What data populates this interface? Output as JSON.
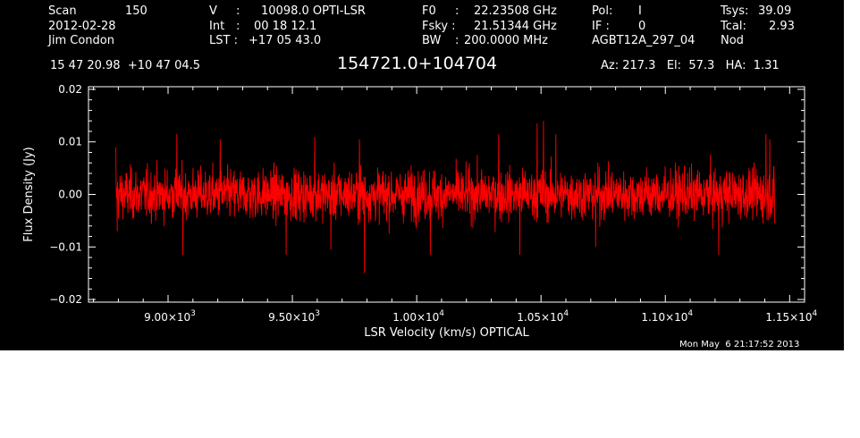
{
  "header": {
    "scan_label": "Scan",
    "scan_number": "150",
    "date": "2012-02-28",
    "observer": "Jim Condon",
    "v_label": "V",
    "v_sep": ":",
    "v_value": "10098.0 OPTI-LSR",
    "int_label": "Int",
    "int_sep": ":",
    "int_value": "00 18 12.1",
    "lst_label": "LST :",
    "lst_value": "+17 05 43.0",
    "f0_label": "F0",
    "f0_sep": ":",
    "f0_value": "22.23508 GHz",
    "fsky_label": "Fsky :",
    "fsky_value": "21.51344 GHz",
    "bw_label": "BW",
    "bw_sep": ":",
    "bw_value": "200.0000 MHz",
    "pol_label": "Pol:",
    "pol_value": "I",
    "if_label": "IF :",
    "if_value": "0",
    "project": "AGBT12A_297_04",
    "tsys_label": "Tsys:",
    "tsys_value": "39.09",
    "tcal_label": "Tcal:",
    "tcal_value": "2.93",
    "proc": "Nod",
    "coords": "15 47 20.98  +10 47 04.5",
    "source_name": "154721.0+104704",
    "az_el_ha": "Az: 217.3   El:  57.3   HA:  1.31",
    "timestamp": "Mon May  6 21:17:52 2013"
  },
  "chart_data": {
    "type": "line",
    "title": "154721.0+104704",
    "xlabel": "LSR Velocity (km/s) OPTICAL",
    "ylabel": "Flux Density (Jy)",
    "xlim": [
      8680,
      11560
    ],
    "ylim": [
      -0.0205,
      0.0205
    ],
    "x_ticks": [
      9000,
      9500,
      10000,
      10500,
      11000,
      11500
    ],
    "x_tick_labels": [
      {
        "m": "9.00",
        "e": "3"
      },
      {
        "m": "9.50",
        "e": "3"
      },
      {
        "m": "1.00",
        "e": "4"
      },
      {
        "m": "1.05",
        "e": "4"
      },
      {
        "m": "1.10",
        "e": "4"
      },
      {
        "m": "1.15",
        "e": "4"
      }
    ],
    "y_ticks": [
      -0.02,
      -0.01,
      0.0,
      0.01,
      0.02
    ],
    "y_tick_labels": [
      "−0.02",
      "−0.01",
      "0.00",
      "0.01",
      "0.02"
    ],
    "grid": false,
    "series": [
      {
        "color": "#ff0000",
        "x_start": 8790,
        "x_end": 11440,
        "rms": 0.0033,
        "points": [
          [
            8790,
            0.009
          ],
          [
            8795,
            -0.007
          ],
          [
            9035,
            0.0115
          ],
          [
            9060,
            -0.0115
          ],
          [
            9210,
            0.0105
          ],
          [
            9475,
            -0.0115
          ],
          [
            9590,
            0.011
          ],
          [
            9655,
            -0.0105
          ],
          [
            9790,
            -0.015
          ],
          [
            9770,
            0.0105
          ],
          [
            10055,
            -0.0115
          ],
          [
            10330,
            0.0115
          ],
          [
            10415,
            -0.0115
          ],
          [
            10485,
            0.0135
          ],
          [
            10510,
            0.014
          ],
          [
            10560,
            0.0115
          ],
          [
            10720,
            -0.01
          ],
          [
            11215,
            -0.0115
          ],
          [
            11405,
            0.0115
          ],
          [
            11420,
            0.0105
          ],
          [
            11440,
            -0.0055
          ]
        ]
      }
    ]
  }
}
